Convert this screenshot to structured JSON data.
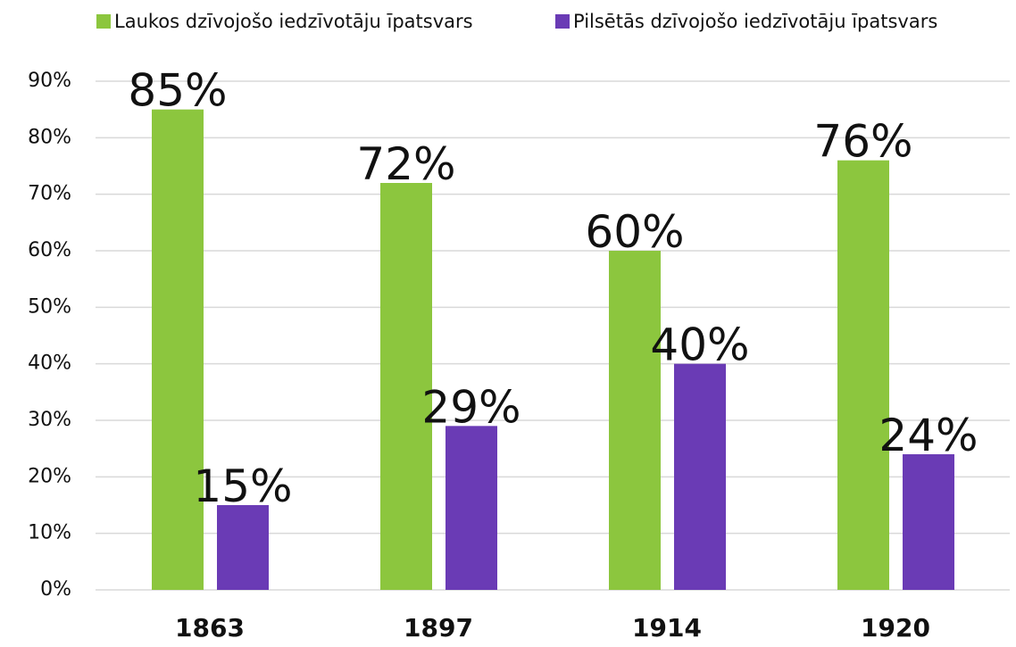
{
  "chart_data": {
    "type": "bar",
    "categories": [
      "1863",
      "1897",
      "1914",
      "1920"
    ],
    "series": [
      {
        "name": "Laukos dzīvojošo iedzīvotāju īpatsvars",
        "color": "#8cc63e",
        "values": [
          85,
          72,
          60,
          76
        ],
        "value_labels": [
          "85%",
          "72%",
          "60%",
          "76%"
        ]
      },
      {
        "name": "Pilsētās dzīvojošo iedzīvotāju īpatsvars",
        "color": "#6a3bb5",
        "values": [
          15,
          29,
          40,
          24
        ],
        "value_labels": [
          "15%",
          "29%",
          "40%",
          "24%"
        ]
      }
    ],
    "ylim": [
      0,
      90
    ],
    "yticks": [
      {
        "value": 0,
        "label": "0%"
      },
      {
        "value": 10,
        "label": "10%"
      },
      {
        "value": 20,
        "label": "20%"
      },
      {
        "value": 30,
        "label": "30%"
      },
      {
        "value": 40,
        "label": "40%"
      },
      {
        "value": 50,
        "label": "50%"
      },
      {
        "value": 60,
        "label": "60%"
      },
      {
        "value": 70,
        "label": "70%"
      },
      {
        "value": 80,
        "label": "80%"
      },
      {
        "value": 90,
        "label": "90%"
      }
    ],
    "grid": true,
    "legend": "top"
  }
}
